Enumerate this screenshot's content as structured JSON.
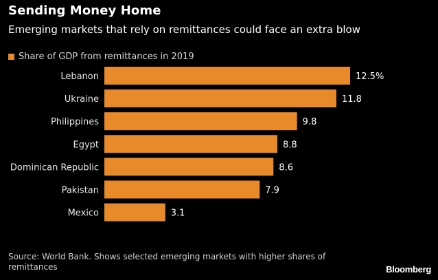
{
  "header": {
    "title": "Sending Money Home",
    "subtitle": "Emerging markets that rely on remittances could face an extra blow"
  },
  "legend": {
    "label": "Share of GDP from remittances in 2019",
    "color": "#E8892A"
  },
  "chart_data": {
    "type": "bar",
    "orientation": "horizontal",
    "title": "Sending Money Home",
    "subtitle": "Emerging markets that rely on remittances could face an extra blow",
    "xlabel": "",
    "ylabel": "",
    "grid": false,
    "legend_position": "top-left",
    "bar_color": "#E8892A",
    "categories": [
      "Lebanon",
      "Ukraine",
      "Philippines",
      "Egypt",
      "Dominican Republic",
      "Pakistan",
      "Mexico"
    ],
    "series": [
      {
        "name": "Share of GDP from remittances in 2019",
        "values": [
          12.5,
          11.8,
          9.8,
          8.8,
          8.6,
          7.9,
          3.1
        ],
        "labels": [
          "12.5%",
          "11.8",
          "9.8",
          "8.8",
          "8.6",
          "7.9",
          "3.1"
        ]
      }
    ],
    "xlim": [
      0,
      12.5
    ]
  },
  "footer": {
    "source": "Source: World Bank. Shows selected emerging markets with higher shares of remittances",
    "brand": "Bloomberg"
  }
}
